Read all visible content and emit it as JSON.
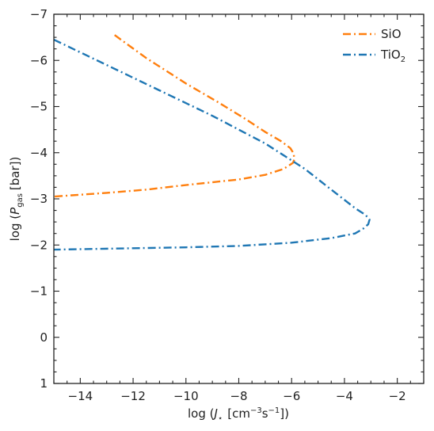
{
  "chart_data": {
    "type": "line",
    "xlabel": {
      "prefix": "log (",
      "symbol": "J",
      "subscript": "⋆",
      "unit_open": "[cm",
      "exp1": "−3",
      "mid": "s",
      "exp2": "−1",
      "unit_close": "])"
    },
    "ylabel": {
      "prefix": "log (",
      "symbol": "P",
      "subscript": "gas",
      "suffix": "[bar])"
    },
    "xlim": [
      -15,
      -1
    ],
    "ylim": [
      1,
      -7
    ],
    "xticks": [
      -14,
      -12,
      -10,
      -8,
      -6,
      -4,
      -2
    ],
    "xtick_labels": [
      "−14",
      "−12",
      "−10",
      "−8",
      "−6",
      "−4",
      "−2"
    ],
    "yticks": [
      -7,
      -6,
      -5,
      -4,
      -3,
      -2,
      -1,
      0,
      1
    ],
    "ytick_labels": [
      "−7",
      "−6",
      "−5",
      "−4",
      "−3",
      "−2",
      "−1",
      "0",
      "1"
    ],
    "legend_position": "top-right",
    "series": [
      {
        "name": "SiO",
        "name_main": "SiO",
        "name_sub": "",
        "color": "#ff7f0e",
        "points": [
          [
            -12.7,
            -6.55
          ],
          [
            -11.5,
            -6.05
          ],
          [
            -10.0,
            -5.5
          ],
          [
            -8.8,
            -5.1
          ],
          [
            -7.8,
            -4.75
          ],
          [
            -7.0,
            -4.45
          ],
          [
            -6.4,
            -4.25
          ],
          [
            -6.05,
            -4.1
          ],
          [
            -5.92,
            -3.98
          ],
          [
            -5.9,
            -3.85
          ],
          [
            -5.95,
            -3.78
          ],
          [
            -6.3,
            -3.65
          ],
          [
            -7.0,
            -3.52
          ],
          [
            -8.0,
            -3.42
          ],
          [
            -10.0,
            -3.3
          ],
          [
            -11.5,
            -3.2
          ],
          [
            -13.0,
            -3.13
          ],
          [
            -15.0,
            -3.05
          ]
        ]
      },
      {
        "name": "TiO2",
        "name_main": "TiO",
        "name_sub": "2",
        "color": "#1f77b4",
        "points": [
          [
            -15.0,
            -6.45
          ],
          [
            -13.0,
            -5.9
          ],
          [
            -11.0,
            -5.35
          ],
          [
            -9.0,
            -4.8
          ],
          [
            -7.0,
            -4.2
          ],
          [
            -5.5,
            -3.65
          ],
          [
            -4.5,
            -3.2
          ],
          [
            -3.6,
            -2.8
          ],
          [
            -3.2,
            -2.65
          ],
          [
            -3.05,
            -2.55
          ],
          [
            -3.1,
            -2.45
          ],
          [
            -3.3,
            -2.35
          ],
          [
            -3.6,
            -2.25
          ],
          [
            -4.5,
            -2.15
          ],
          [
            -6.0,
            -2.05
          ],
          [
            -8.0,
            -1.98
          ],
          [
            -10.0,
            -1.95
          ],
          [
            -12.0,
            -1.93
          ],
          [
            -15.0,
            -1.9
          ]
        ]
      }
    ]
  }
}
